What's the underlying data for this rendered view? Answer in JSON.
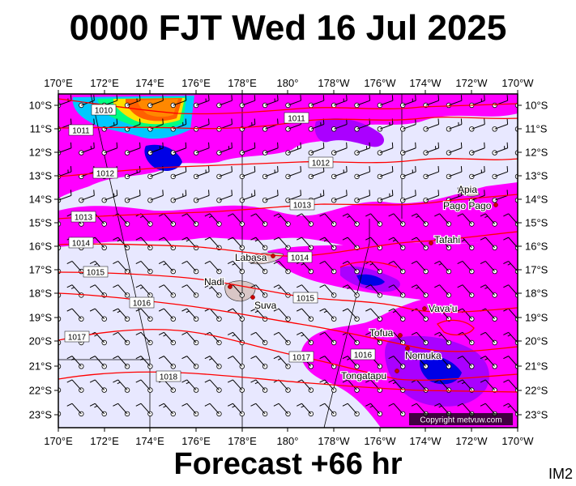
{
  "title": "0000 FJT Wed 16 Jul 2025",
  "footer": "Forecast +66 hr",
  "image_id": "IM2",
  "copyright": "Copyright metvuw.com",
  "lon_labels": [
    "170°E",
    "172°E",
    "174°E",
    "176°E",
    "178°E",
    "180°",
    "178°W",
    "176°W",
    "174°W",
    "172°W",
    "170°W"
  ],
  "lat_labels": [
    "10°S",
    "11°S",
    "12°S",
    "13°S",
    "14°S",
    "15°S",
    "16°S",
    "17°S",
    "18°S",
    "19°S",
    "20°S",
    "21°S",
    "22°S",
    "23°S"
  ],
  "isobars": [
    {
      "label": "1010",
      "value": 1010
    },
    {
      "label": "1011",
      "value": 1011
    },
    {
      "label": "1011",
      "value": 1011
    },
    {
      "label": "1012",
      "value": 1012
    },
    {
      "label": "1012",
      "value": 1012
    },
    {
      "label": "1013",
      "value": 1013
    },
    {
      "label": "1013",
      "value": 1013
    },
    {
      "label": "1014",
      "value": 1014
    },
    {
      "label": "1014",
      "value": 1014
    },
    {
      "label": "1015",
      "value": 1015
    },
    {
      "label": "1015",
      "value": 1015
    },
    {
      "label": "1016",
      "value": 1016
    },
    {
      "label": "1016",
      "value": 1016
    },
    {
      "label": "1017",
      "value": 1017
    },
    {
      "label": "1017",
      "value": 1017
    },
    {
      "label": "1018",
      "value": 1018
    }
  ],
  "places": [
    {
      "name": "Apia"
    },
    {
      "name": "Pago Pago"
    },
    {
      "name": "Tafahi"
    },
    {
      "name": "Labasa"
    },
    {
      "name": "Nadi"
    },
    {
      "name": "Suva"
    },
    {
      "name": "Vava'u"
    },
    {
      "name": "Tofua"
    },
    {
      "name": "Nomuka"
    },
    {
      "name": "Tongatapu"
    }
  ],
  "colors": {
    "background": "#e8e8ff",
    "rain_light": "#ff00ff",
    "rain_medium": "#aa00ff",
    "rain_heavy": "#0000e6",
    "isobar": "#ff0000",
    "city": "#cc0000",
    "land": "#d9c6c6"
  }
}
